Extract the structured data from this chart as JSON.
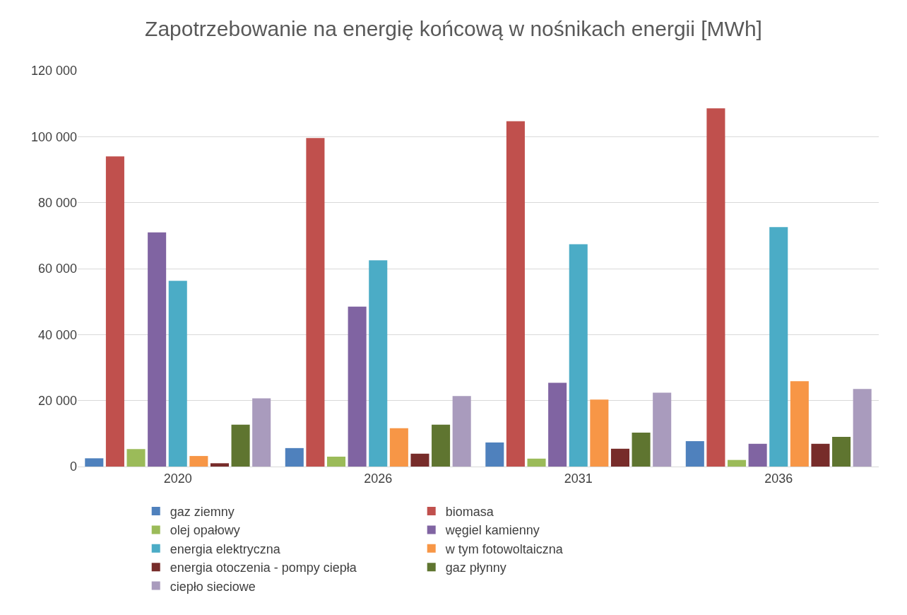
{
  "chart_data": {
    "type": "bar",
    "title": "Zapotrzebowanie na energię końcową w nośnikach energii [MWh]",
    "categories": [
      "2020",
      "2026",
      "2031",
      "2036"
    ],
    "series": [
      {
        "name": "gaz ziemny",
        "color": "#4f81bd",
        "values": [
          2500,
          5600,
          7300,
          7700
        ]
      },
      {
        "name": "biomasa",
        "color": "#c0504d",
        "values": [
          94000,
          99600,
          104700,
          108600
        ]
      },
      {
        "name": "olej opałowy",
        "color": "#9bbb59",
        "values": [
          5300,
          3000,
          2400,
          2000
        ]
      },
      {
        "name": "węgiel kamienny",
        "color": "#8064a2",
        "values": [
          71000,
          48500,
          25400,
          6900
        ]
      },
      {
        "name": "energia elektryczna",
        "color": "#4bacc6",
        "values": [
          56300,
          62500,
          67400,
          72600
        ]
      },
      {
        "name": "w tym fotowoltaiczna",
        "color": "#f79646",
        "values": [
          3200,
          11600,
          20300,
          25900
        ]
      },
      {
        "name": "energia otoczenia - pompy ciepła",
        "color": "#772c2a",
        "values": [
          1000,
          3900,
          5400,
          6900
        ]
      },
      {
        "name": "gaz płynny",
        "color": "#5f7530",
        "values": [
          12700,
          12700,
          10300,
          9000
        ]
      },
      {
        "name": "ciepło sieciowe",
        "color": "#a99bbd",
        "values": [
          20700,
          21400,
          22400,
          23500
        ]
      }
    ],
    "ylim": [
      0,
      120000
    ],
    "yticks": [
      {
        "value": 0,
        "label": "0"
      },
      {
        "value": 20000,
        "label": "20 000"
      },
      {
        "value": 40000,
        "label": "40 000"
      },
      {
        "value": 60000,
        "label": "60 000"
      },
      {
        "value": 80000,
        "label": "80 000"
      },
      {
        "value": 100000,
        "label": "100 000"
      },
      {
        "value": 120000,
        "label": "120 000"
      }
    ],
    "grid": "y",
    "legend": "bottom"
  }
}
